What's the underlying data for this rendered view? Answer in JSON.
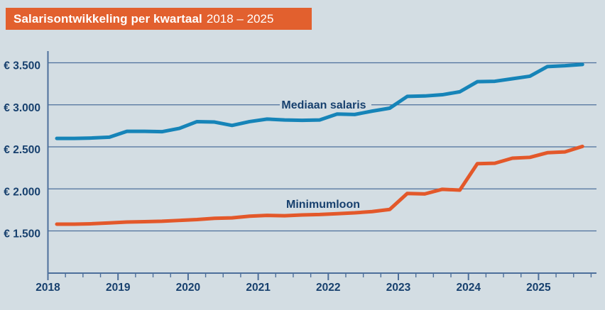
{
  "title": {
    "bold": "Salarisontwikkeling per kwartaal",
    "period": "2018 – 2025"
  },
  "colors": {
    "background": "#d3dde3",
    "title_bar": "#e2602e",
    "title_text": "#ffffff",
    "axis_and_grid": "#4d6f9b",
    "label_text": "#17406e",
    "mediaan_salaris_line": "#1684b8",
    "minimumloon_line": "#e3582a"
  },
  "chart_data": {
    "type": "line",
    "title": "Salarisontwikkeling per kwartaal 2018 – 2025",
    "x_unit": "kwartaal",
    "categories": [
      "2018 K1",
      "2018 K2",
      "2018 K3",
      "2018 K4",
      "2019 K1",
      "2019 K2",
      "2019 K3",
      "2019 K4",
      "2020 K1",
      "2020 K2",
      "2020 K3",
      "2020 K4",
      "2021 K1",
      "2021 K2",
      "2021 K3",
      "2021 K4",
      "2022 K1",
      "2022 K2",
      "2022 K3",
      "2022 K4",
      "2023 K1",
      "2023 K2",
      "2023 K3",
      "2023 K4",
      "2024 K1",
      "2024 K2",
      "2024 K3",
      "2024 K4",
      "2025 K1",
      "2025 K2",
      "2025 K3"
    ],
    "series": [
      {
        "name": "Mediaan salaris",
        "color": "#1684b8",
        "values": [
          2600,
          2600,
          2605,
          2615,
          2685,
          2685,
          2680,
          2720,
          2800,
          2795,
          2755,
          2800,
          2830,
          2820,
          2815,
          2820,
          2890,
          2885,
          2925,
          2960,
          3100,
          3105,
          3120,
          3155,
          3275,
          3280,
          3310,
          3340,
          3455,
          3465,
          3480
        ]
      },
      {
        "name": "Minimumloon",
        "color": "#e3582a",
        "values": [
          1580,
          1580,
          1585,
          1595,
          1605,
          1610,
          1615,
          1625,
          1635,
          1650,
          1655,
          1675,
          1685,
          1680,
          1690,
          1695,
          1705,
          1715,
          1730,
          1755,
          1945,
          1940,
          1995,
          1985,
          2300,
          2305,
          2365,
          2375,
          2430,
          2440,
          2505
        ]
      }
    ],
    "yticks": [
      1500,
      2000,
      2500,
      3000,
      3500
    ],
    "ytick_labels": [
      "€ 1.500",
      "€ 2.000",
      "€ 2.500",
      "€ 3.000",
      "€ 3.500"
    ],
    "xtick_labels": [
      "2018",
      "2019",
      "2020",
      "2021",
      "2022",
      "2023",
      "2024",
      "2025"
    ],
    "ylim": [
      1500,
      3500
    ],
    "grid": "horizontal",
    "legend": "inline-labels-on-chart",
    "currency": "EUR"
  }
}
